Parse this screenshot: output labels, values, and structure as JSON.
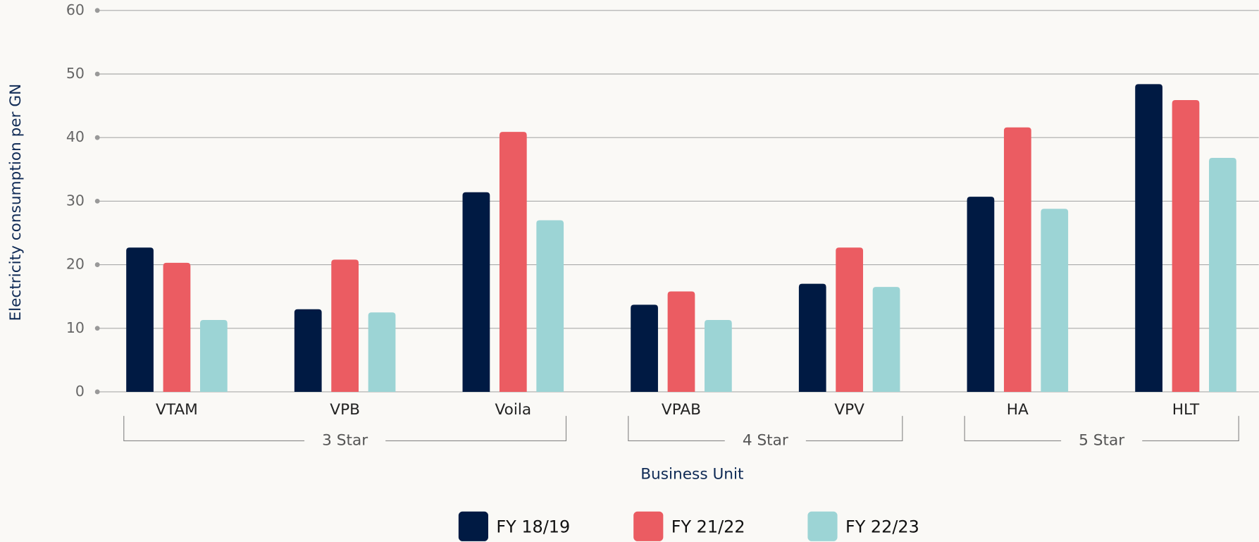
{
  "chart_data": {
    "type": "bar",
    "x_label": "Business Unit",
    "y_label": "Electricity consumption per GN",
    "categories": [
      "VTAM",
      "VPB",
      "Voila",
      "VPAB",
      "VPV",
      "HA",
      "HLT"
    ],
    "groups": [
      {
        "label": "3 Star",
        "count": 3
      },
      {
        "label": "4 Star",
        "count": 2
      },
      {
        "label": "5 Star",
        "count": 2
      }
    ],
    "series": [
      {
        "name": "FY 18/19",
        "color": "#001a43",
        "values": [
          22.7,
          13,
          31.4,
          13.7,
          17,
          30.7,
          48.4
        ]
      },
      {
        "name": "FY 21/22",
        "color": "#eb5c62",
        "values": [
          20.3,
          20.8,
          40.9,
          15.8,
          22.7,
          41.6,
          45.9
        ]
      },
      {
        "name": "FY 22/23",
        "color": "#9cd4d5",
        "values": [
          11.3,
          12.5,
          27,
          11.3,
          16.5,
          28.8,
          36.8
        ]
      }
    ],
    "ylim": [
      0,
      60
    ],
    "yticks": [
      0,
      10,
      20,
      30,
      40,
      50,
      60
    ],
    "grid": true,
    "legend": "bottom"
  }
}
